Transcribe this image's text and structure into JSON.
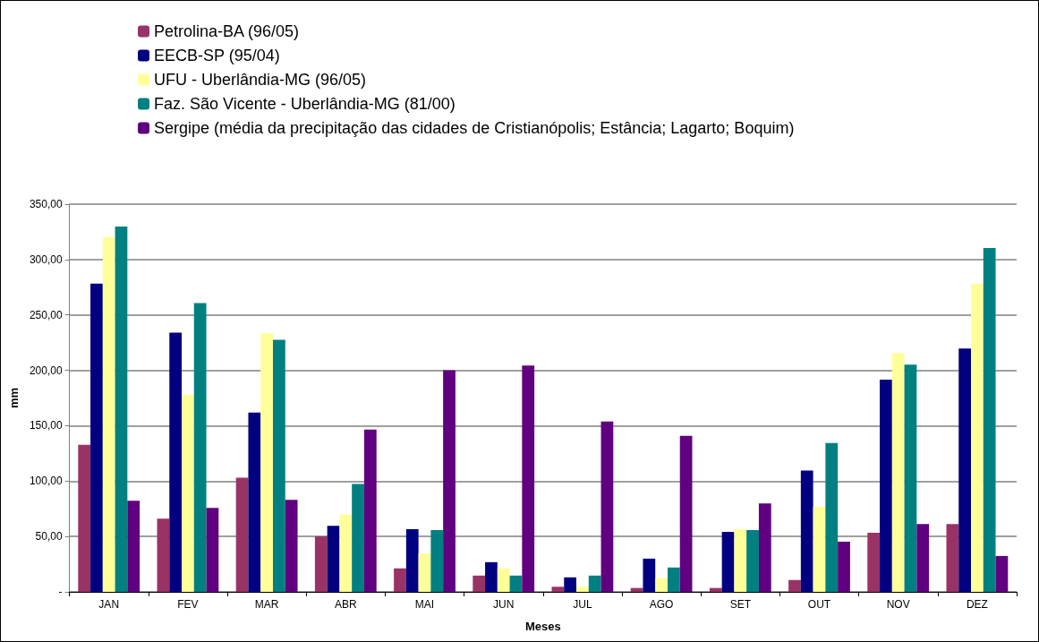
{
  "chart_data": {
    "type": "bar",
    "xlabel": "Meses",
    "ylabel": "mm",
    "categories": [
      "JAN",
      "FEV",
      "MAR",
      "ABR",
      "MAI",
      "JUN",
      "JUL",
      "AGO",
      "SET",
      "OUT",
      "NOV",
      "DEZ"
    ],
    "series": [
      {
        "name": "Petrolina-BA (96/05)",
        "color": "#993366",
        "values": [
          132.8,
          66.1,
          103.1,
          50.1,
          21.2,
          14.7,
          4.6,
          3.5,
          3.5,
          10.7,
          53.3,
          61.3
        ]
      },
      {
        "name": "EECB-SP (95/04)",
        "color": "#000080",
        "values": [
          278.3,
          234.1,
          161.8,
          59.7,
          56.5,
          26.8,
          13.1,
          30.0,
          54.1,
          109.5,
          191.5,
          219.6
        ]
      },
      {
        "name": "UFU - Uberlândia-MG (96/05)",
        "color": "#ffff99",
        "values": [
          320.3,
          177.8,
          233.3,
          69.9,
          34.8,
          21.2,
          4.6,
          12.3,
          56.5,
          76.6,
          215.6,
          278.3
        ]
      },
      {
        "name": "Faz. São Vicente - Uberlândia-MG (81/00)",
        "color": "#008080",
        "values": [
          329.7,
          260.6,
          227.6,
          97.5,
          55.7,
          14.7,
          14.7,
          22.0,
          55.7,
          134.4,
          205.1,
          310.4
        ]
      },
      {
        "name": "Sergipe (média da precipitação das cidades de Cristianópolis; Estância; Lagarto; Boquim)",
        "color": "#600080",
        "values": [
          82.2,
          75.8,
          83.0,
          146.5,
          200.1,
          204.3,
          153.7,
          140.9,
          79.8,
          45.3,
          61.3,
          32.4
        ]
      }
    ],
    "ylim": [
      0,
      350
    ],
    "yticks": [
      {
        "value": 0,
        "label": "-"
      },
      {
        "value": 50,
        "label": "50,00"
      },
      {
        "value": 100,
        "label": "100,00"
      },
      {
        "value": 150,
        "label": "150,00"
      },
      {
        "value": 200,
        "label": "200,00"
      },
      {
        "value": 250,
        "label": "250,00"
      },
      {
        "value": 300,
        "label": "300,00"
      },
      {
        "value": 350,
        "label": "350,00"
      }
    ],
    "grid": "y",
    "legend": "top"
  }
}
